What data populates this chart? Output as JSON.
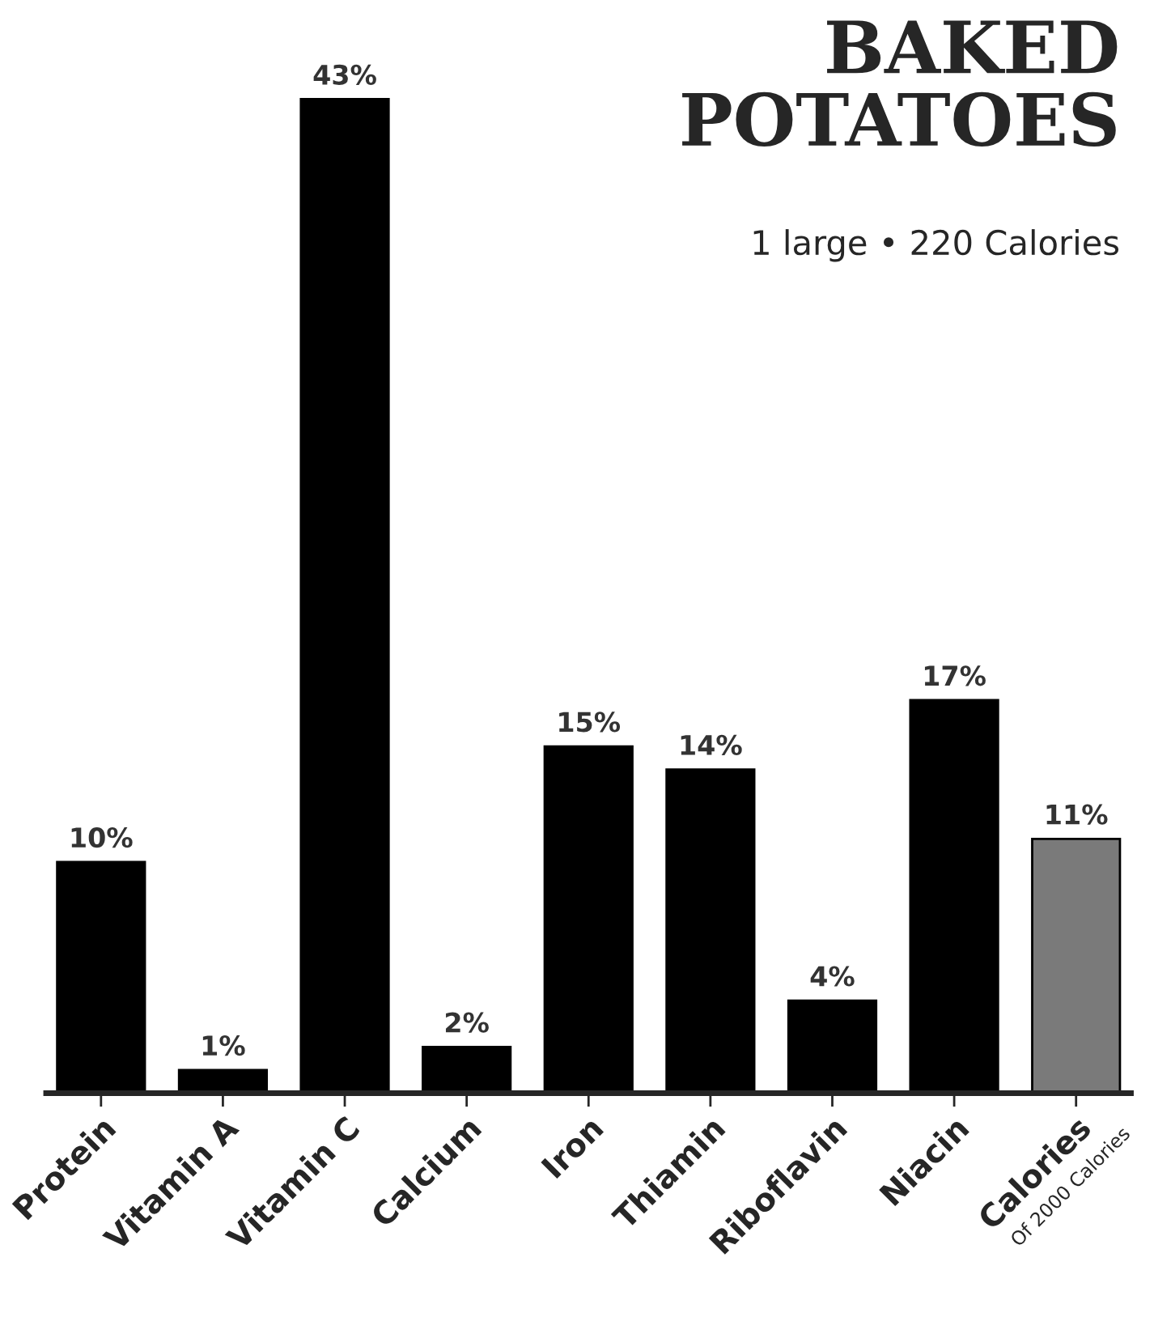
{
  "chart_data": {
    "type": "bar",
    "title": "BAKED\nPOTATOES",
    "subtitle": "1 large • 220 Calories",
    "categories": [
      "Protein",
      "Vitamin A",
      "Vitamin C",
      "Calcium",
      "Iron",
      "Thiamin",
      "Riboflavin",
      "Niacin",
      "Calories"
    ],
    "values": [
      10,
      1,
      43,
      2,
      15,
      14,
      4,
      17,
      11
    ],
    "value_labels": [
      "10%",
      "1%",
      "43%",
      "2%",
      "15%",
      "14%",
      "4%",
      "17%",
      "11%"
    ],
    "colors": [
      "#000000",
      "#000000",
      "#000000",
      "#000000",
      "#000000",
      "#000000",
      "#000000",
      "#000000",
      "#7a7a7a"
    ],
    "annotations": [
      "Of 2000 Calories"
    ],
    "grid": false
  }
}
